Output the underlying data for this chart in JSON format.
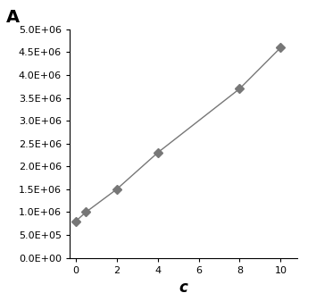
{
  "x": [
    0,
    0.5,
    2,
    4,
    8,
    10
  ],
  "y": [
    800000,
    1000000,
    1500000,
    2300000,
    3700000,
    4600000
  ],
  "xlabel": "c",
  "ylabel": "A",
  "xlim": [
    -0.3,
    10.8
  ],
  "ylim": [
    0,
    5000000
  ],
  "yticks": [
    0,
    500000,
    1000000,
    1500000,
    2000000,
    2500000,
    3000000,
    3500000,
    4000000,
    4500000,
    5000000
  ],
  "ytick_labels": [
    "0.0E+00",
    "5.0E+05",
    "1.0E+06",
    "1.5E+06",
    "2.0E+06",
    "2.5E+06",
    "3.0E+06",
    "3.5E+06",
    "4.0E+06",
    "4.5E+06",
    "5.0E+06"
  ],
  "xticks": [
    0,
    2,
    4,
    6,
    8,
    10
  ],
  "marker_color": "#777777",
  "line_color": "#777777",
  "background_color": "#ffffff",
  "marker": "D",
  "marker_size": 5,
  "line_width": 1.0,
  "tick_fontsize": 8,
  "xlabel_fontsize": 12,
  "ylabel_fontsize": 13
}
